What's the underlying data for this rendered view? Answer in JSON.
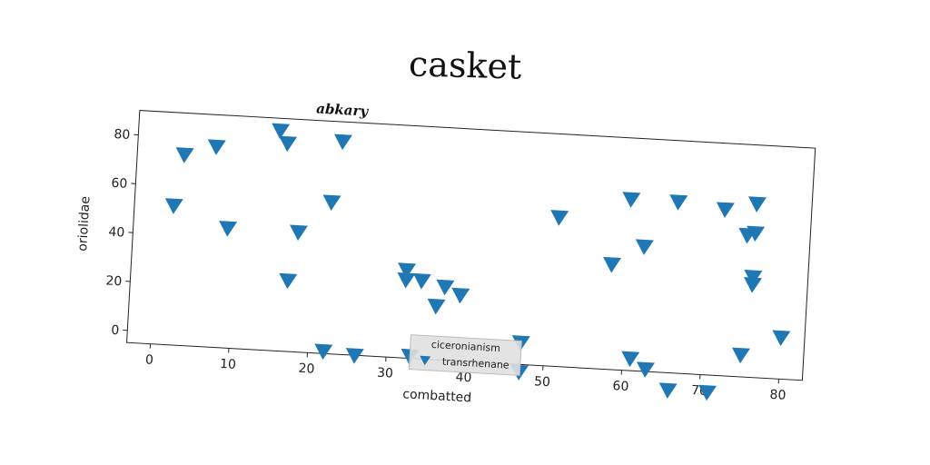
{
  "figure": {
    "suptitle": "casket"
  },
  "chart_data": {
    "type": "scatter",
    "title": "abkary",
    "xlabel": "combatted",
    "ylabel": "oriolidae",
    "xlim": [
      -3,
      83
    ],
    "ylim": [
      -5,
      90
    ],
    "xticks": [
      0,
      10,
      20,
      30,
      40,
      50,
      60,
      70,
      80
    ],
    "yticks": [
      0,
      20,
      40,
      60,
      80
    ],
    "grid": false,
    "legend": {
      "title": "ciceronianism",
      "position": "lower-center"
    },
    "series": [
      {
        "name": "transrhenane",
        "marker": "triangle-down",
        "color": "#1f77b4",
        "points": [
          [
            2,
            52
          ],
          [
            3,
            73
          ],
          [
            7,
            77
          ],
          [
            9,
            44
          ],
          [
            15,
            85
          ],
          [
            16,
            80
          ],
          [
            17,
            24
          ],
          [
            18,
            44
          ],
          [
            22,
            57
          ],
          [
            23,
            82
          ],
          [
            22,
            -4
          ],
          [
            26,
            -5
          ],
          [
            32,
            31
          ],
          [
            32,
            27
          ],
          [
            34,
            27
          ],
          [
            36,
            17
          ],
          [
            37,
            25
          ],
          [
            39,
            22
          ],
          [
            33,
            -4
          ],
          [
            47,
            4
          ],
          [
            47,
            -8
          ],
          [
            51,
            56
          ],
          [
            58,
            38
          ],
          [
            60,
            65
          ],
          [
            62,
            46
          ],
          [
            61,
            0
          ],
          [
            63,
            -4
          ],
          [
            66,
            65
          ],
          [
            66,
            -12
          ],
          [
            71,
            -12
          ],
          [
            72,
            63
          ],
          [
            75,
            53
          ],
          [
            76,
            54
          ],
          [
            76,
            66
          ],
          [
            76,
            36
          ],
          [
            76,
            33
          ],
          [
            75,
            4
          ],
          [
            80,
            12
          ]
        ]
      }
    ]
  }
}
